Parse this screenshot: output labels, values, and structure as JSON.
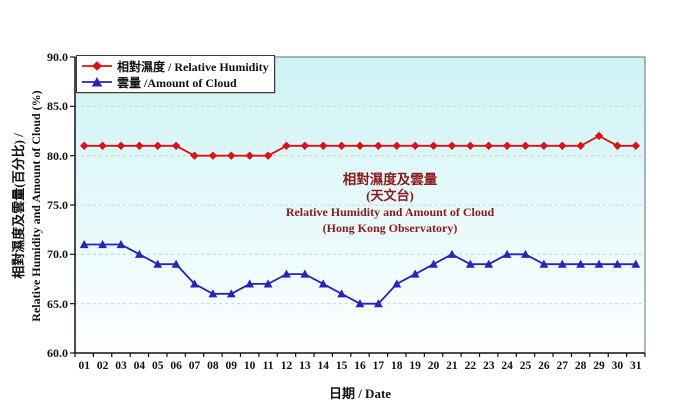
{
  "colors": {
    "outer_bg": "#ffffff",
    "plot_bg_top": "#cdf3f5",
    "plot_bg_bottom": "#feffff",
    "grid": "#cfcfcf",
    "plot_border": "#5a7474",
    "axis_line": "#111111",
    "humidity_series": "#dd1111",
    "cloud_series": "#2525be",
    "center_title_text": "#8b1a1a",
    "legend_border": "#3a3a3a",
    "legend_bg": "#ffffff"
  },
  "chart_data": {
    "type": "line",
    "title_lines": [
      "相對濕度及雲量",
      "(天文台)",
      "Relative Humidity and Amount of Cloud",
      "(Hong Kong Observatory)"
    ],
    "x_axis": {
      "label": "日期 / Date",
      "categories": [
        "01",
        "02",
        "03",
        "04",
        "05",
        "06",
        "07",
        "08",
        "09",
        "10",
        "11",
        "12",
        "13",
        "14",
        "15",
        "16",
        "17",
        "18",
        "19",
        "20",
        "21",
        "22",
        "23",
        "24",
        "25",
        "26",
        "27",
        "28",
        "29",
        "30",
        "31"
      ]
    },
    "y_axis": {
      "label_line1": "相對濕度及雲量(百分比) /",
      "label_line2": "Relative Humidity and Amount of Cloud (%)",
      "min": 60,
      "max": 90,
      "tick_step": 5,
      "tick_labels": [
        "90.0",
        "85.0",
        "80.0",
        "75.0",
        "70.0",
        "65.0",
        "60.0"
      ]
    },
    "grid": "horizontal-dashed",
    "legend_position": "top-left-inside",
    "series": [
      {
        "name": "相對濕度 / Relative Humidity",
        "marker": "diamond",
        "color": "#dd1111",
        "values": [
          81,
          81,
          81,
          81,
          81,
          81,
          80,
          80,
          80,
          80,
          80,
          81,
          81,
          81,
          81,
          81,
          81,
          81,
          81,
          81,
          81,
          81,
          81,
          81,
          81,
          81,
          81,
          81,
          82,
          81,
          81
        ]
      },
      {
        "name": "雲量 /Amount of Cloud",
        "marker": "triangle",
        "color": "#2525be",
        "values": [
          71,
          71,
          71,
          70,
          69,
          69,
          67,
          66,
          66,
          67,
          67,
          68,
          68,
          67,
          66,
          65,
          65,
          67,
          68,
          69,
          70,
          69,
          69,
          70,
          70,
          69,
          69,
          69,
          69,
          69,
          69
        ]
      }
    ]
  }
}
